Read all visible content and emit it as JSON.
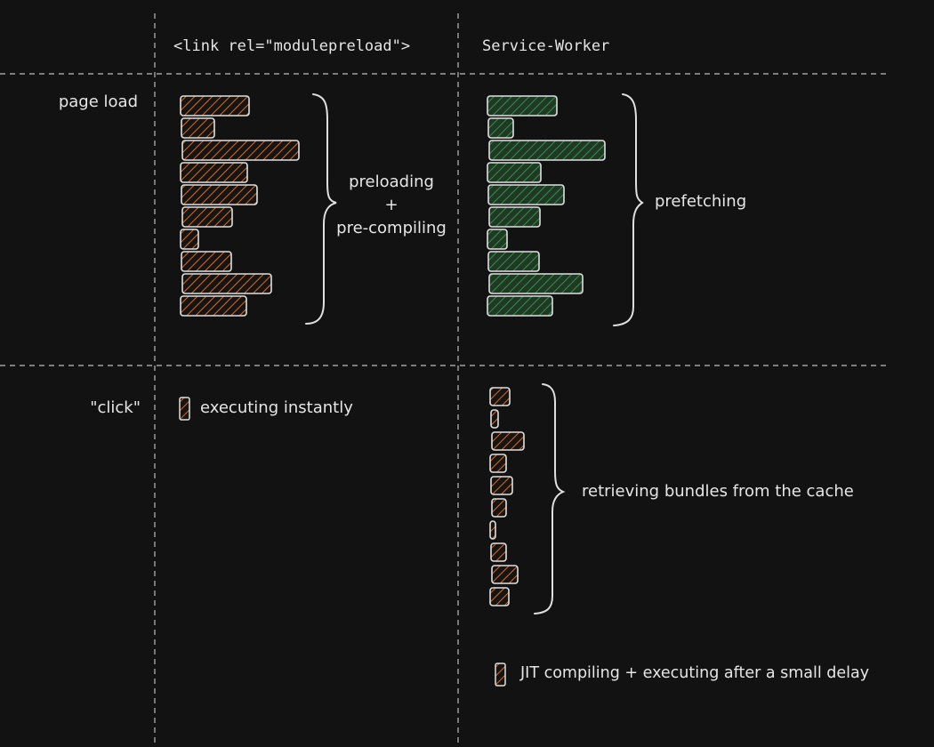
{
  "columns": {
    "modulepreload": "<link rel=\"modulepreload\">",
    "service_worker": "Service-Worker"
  },
  "rows": {
    "page_load": "page load",
    "click": "\"click\""
  },
  "annotations": {
    "preloading": "preloading",
    "plus": "+",
    "precompiling": "pre-compiling",
    "prefetching": "prefetching",
    "executing_instantly": "executing instantly",
    "retrieving": "retrieving bundles from the cache",
    "jit": "JIT compiling + executing after a small delay"
  },
  "colors": {
    "background": "#121212",
    "stroke": "#e0e0e0",
    "orange_hatch": "#c8703a",
    "green_hatch": "#3f8a4a",
    "green_fill": "#1f3a24",
    "divider": "#bdbdbd"
  },
  "bar_groups": {
    "preload_page_load": {
      "color": "orange",
      "relative_lengths": [
        77,
        37,
        131,
        75,
        85,
        56,
        20,
        56,
        100,
        74
      ]
    },
    "sw_page_load": {
      "color": "green",
      "relative_lengths": [
        78,
        28,
        130,
        60,
        85,
        57,
        22,
        57,
        105,
        73
      ]
    },
    "sw_click": {
      "color": "orange",
      "relative_lengths": [
        22,
        8,
        36,
        18,
        24,
        16,
        6,
        17,
        29,
        21
      ]
    }
  }
}
